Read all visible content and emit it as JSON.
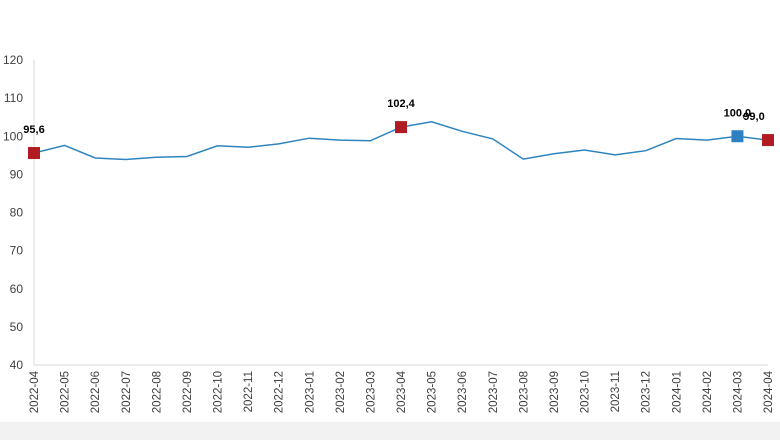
{
  "colors": {
    "line": "#2e84c0",
    "marker_red": "#b01c22",
    "marker_blue": "#2f80c0",
    "axis": "#d9d9d9",
    "text": "#404040",
    "footer": "#f2f2f2"
  },
  "chart_data": {
    "type": "line",
    "title": "",
    "xlabel": "",
    "ylabel": "",
    "ylim": [
      40,
      120
    ],
    "yticks": [
      40,
      50,
      60,
      70,
      80,
      90,
      100,
      110,
      120
    ],
    "grid": false,
    "legend": "none",
    "x": [
      "2022-04",
      "2022-05",
      "2022-06",
      "2022-07",
      "2022-08",
      "2022-09",
      "2022-10",
      "2022-11",
      "2022-12",
      "2023-01",
      "2023-02",
      "2023-03",
      "2023-04",
      "2023-05",
      "2023-06",
      "2023-07",
      "2023-08",
      "2023-09",
      "2023-10",
      "2023-11",
      "2023-12",
      "2024-01",
      "2024-02",
      "2024-03",
      "2024-04"
    ],
    "series": [
      {
        "values": [
          95.6,
          97.6,
          94.3,
          93.9,
          94.5,
          94.7,
          97.5,
          97.1,
          98.0,
          99.5,
          99.0,
          98.8,
          102.4,
          103.8,
          101.3,
          99.3,
          94.0,
          95.4,
          96.4,
          95.1,
          96.2,
          99.4,
          99.0,
          100.0,
          99.0
        ]
      }
    ],
    "highlighted_points": [
      {
        "index": 0,
        "label": "95,6",
        "color": "red"
      },
      {
        "index": 12,
        "label": "102,4",
        "color": "red"
      },
      {
        "index": 23,
        "label": "100,0",
        "color": "blue"
      },
      {
        "index": 24,
        "label": "99,0",
        "color": "red"
      }
    ]
  }
}
